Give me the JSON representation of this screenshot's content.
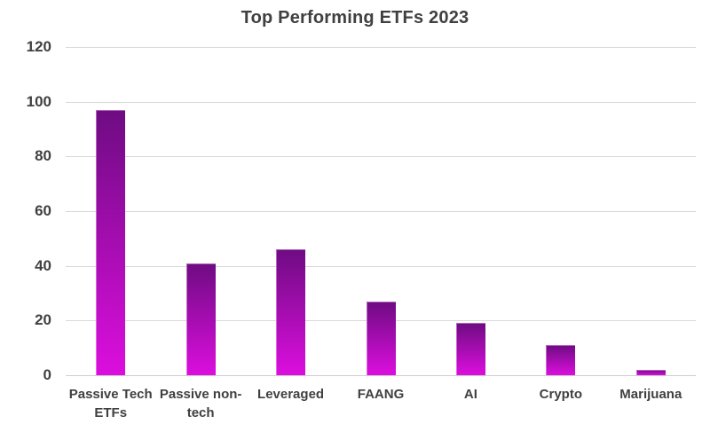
{
  "title": "Top Performing ETFs 2023",
  "chart_data": {
    "type": "bar",
    "title": "Top Performing ETFs 2023",
    "categories": [
      "Passive Tech ETFs",
      "Passive non-tech",
      "Leveraged",
      "FAANG",
      "AI",
      "Crypto",
      "Marijuana"
    ],
    "category_lines": [
      [
        "Passive Tech",
        "ETFs"
      ],
      [
        "Passive non-",
        "tech"
      ],
      [
        "Leveraged"
      ],
      [
        "FAANG"
      ],
      [
        "AI"
      ],
      [
        "Crypto"
      ],
      [
        "Marijuana"
      ]
    ],
    "values": [
      97,
      41,
      46,
      27,
      19,
      11,
      2
    ],
    "xlabel": "",
    "ylabel": "",
    "ylim": [
      0,
      120
    ],
    "yticks": [
      0,
      20,
      40,
      60,
      80,
      100,
      120
    ],
    "grid": true,
    "legend_position": "none",
    "colors": {
      "bar_gradient_top": "#6e0c82",
      "bar_gradient_bottom": "#dc0ede",
      "gridline": "#d9d9d9",
      "text": "#404040",
      "background": "#ffffff"
    }
  }
}
